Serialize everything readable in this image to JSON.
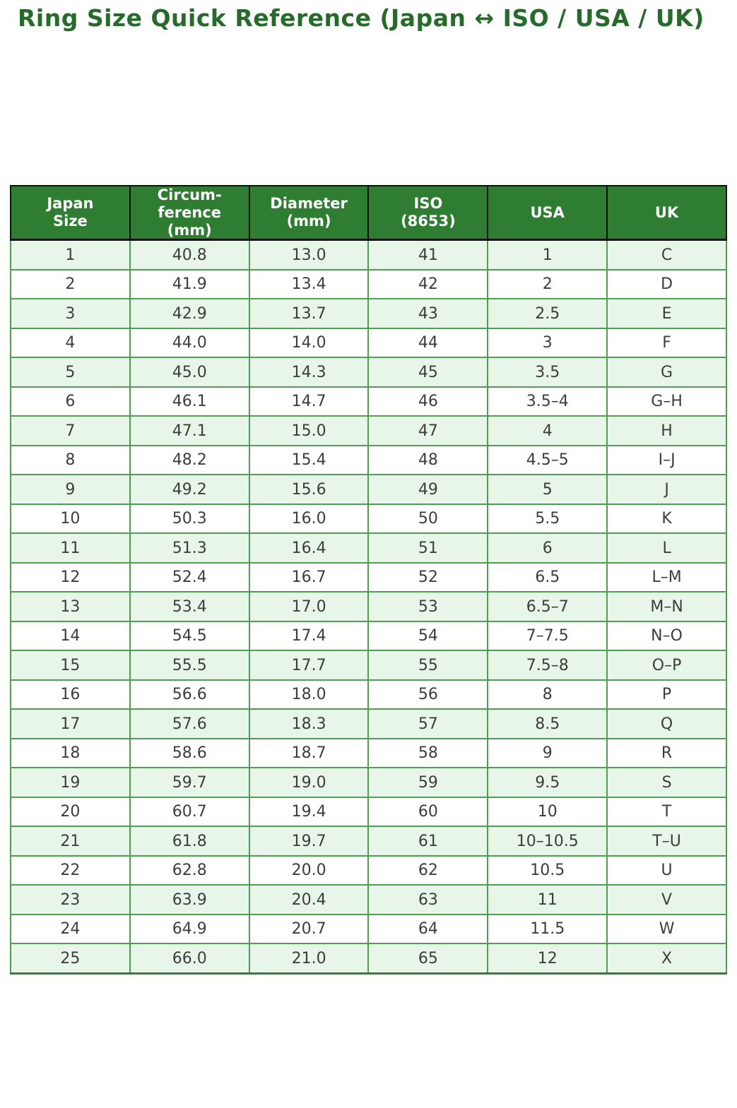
{
  "title": "Ring Size Quick Reference (Japan ↔ ISO / USA / UK)",
  "chart_data": {
    "type": "table",
    "title": "Ring Size Quick Reference (Japan ↔ ISO / USA / UK)",
    "columns": [
      "Japan\nSize",
      "Circum-\nference\n(mm)",
      "Diameter\n(mm)",
      "ISO\n(8653)",
      "USA",
      "UK"
    ],
    "rows": [
      [
        "1",
        "40.8",
        "13.0",
        "41",
        "1",
        "C"
      ],
      [
        "2",
        "41.9",
        "13.4",
        "42",
        "2",
        "D"
      ],
      [
        "3",
        "42.9",
        "13.7",
        "43",
        "2.5",
        "E"
      ],
      [
        "4",
        "44.0",
        "14.0",
        "44",
        "3",
        "F"
      ],
      [
        "5",
        "45.0",
        "14.3",
        "45",
        "3.5",
        "G"
      ],
      [
        "6",
        "46.1",
        "14.7",
        "46",
        "3.5–4",
        "G–H"
      ],
      [
        "7",
        "47.1",
        "15.0",
        "47",
        "4",
        "H"
      ],
      [
        "8",
        "48.2",
        "15.4",
        "48",
        "4.5–5",
        "I–J"
      ],
      [
        "9",
        "49.2",
        "15.6",
        "49",
        "5",
        "J"
      ],
      [
        "10",
        "50.3",
        "16.0",
        "50",
        "5.5",
        "K"
      ],
      [
        "11",
        "51.3",
        "16.4",
        "51",
        "6",
        "L"
      ],
      [
        "12",
        "52.4",
        "16.7",
        "52",
        "6.5",
        "L–M"
      ],
      [
        "13",
        "53.4",
        "17.0",
        "53",
        "6.5–7",
        "M–N"
      ],
      [
        "14",
        "54.5",
        "17.4",
        "54",
        "7–7.5",
        "N–O"
      ],
      [
        "15",
        "55.5",
        "17.7",
        "55",
        "7.5–8",
        "O–P"
      ],
      [
        "16",
        "56.6",
        "18.0",
        "56",
        "8",
        "P"
      ],
      [
        "17",
        "57.6",
        "18.3",
        "57",
        "8.5",
        "Q"
      ],
      [
        "18",
        "58.6",
        "18.7",
        "58",
        "9",
        "R"
      ],
      [
        "19",
        "59.7",
        "19.0",
        "59",
        "9.5",
        "S"
      ],
      [
        "20",
        "60.7",
        "19.4",
        "60",
        "10",
        "T"
      ],
      [
        "21",
        "61.8",
        "19.7",
        "61",
        "10–10.5",
        "T–U"
      ],
      [
        "22",
        "62.8",
        "20.0",
        "62",
        "10.5",
        "U"
      ],
      [
        "23",
        "63.9",
        "20.4",
        "63",
        "11",
        "V"
      ],
      [
        "24",
        "64.9",
        "20.7",
        "64",
        "11.5",
        "W"
      ],
      [
        "25",
        "66.0",
        "21.0",
        "65",
        "12",
        "X"
      ]
    ],
    "layout": {
      "grid": true,
      "header_position": "top",
      "row_striping": "odd-light-green"
    }
  },
  "colors": {
    "title_text": "#266b2a",
    "header_bg": "#2e7d32",
    "header_text": "#ffffff",
    "header_border": "#111111",
    "row_odd_bg": "#e8f5e9",
    "row_even_bg": "#ffffff",
    "grid_border": "#4f9c55",
    "outer_bottom_border": "#357a3a",
    "cell_text": "#3d3d3d"
  }
}
